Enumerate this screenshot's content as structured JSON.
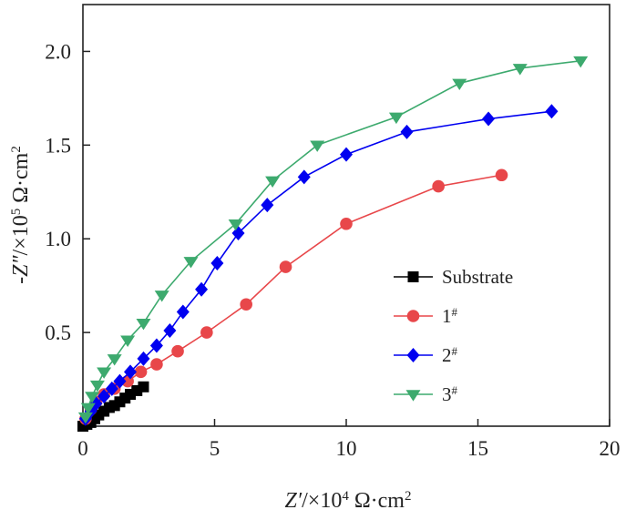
{
  "chart_data": {
    "type": "scatter",
    "xlabel": {
      "var": "Z′",
      "unit": "/×10",
      "exp": "4",
      "tail": " Ω·cm",
      "sq": "2"
    },
    "ylabel": {
      "var": "-Z″",
      "unit": "/×10",
      "exp": "5",
      "tail": " Ω·cm",
      "sq": "2"
    },
    "xlim": [
      0,
      20
    ],
    "ylim": [
      0,
      2.25
    ],
    "xticks": [
      "0",
      "5",
      "10",
      "15",
      "20"
    ],
    "yticks": [
      "0.5",
      "1.0",
      "1.5",
      "2.0"
    ],
    "grid": false,
    "legend_position": "right",
    "series": [
      {
        "name": "Substrate",
        "color": "#000000",
        "marker": "square",
        "x": [
          0.0,
          0.15,
          0.3,
          0.45,
          0.6,
          0.8,
          1.0,
          1.2,
          1.4,
          1.6,
          1.8,
          2.05,
          2.3
        ],
        "y": [
          0.0,
          0.01,
          0.02,
          0.04,
          0.06,
          0.08,
          0.1,
          0.11,
          0.13,
          0.15,
          0.17,
          0.19,
          0.21
        ]
      },
      {
        "name": "1",
        "sup": "#",
        "color": "#e8474a",
        "marker": "circle",
        "x": [
          0.1,
          0.3,
          0.5,
          0.8,
          1.2,
          1.7,
          2.2,
          2.8,
          3.6,
          4.7,
          6.2,
          7.7,
          10.0,
          13.5,
          15.9
        ],
        "y": [
          0.04,
          0.09,
          0.13,
          0.17,
          0.2,
          0.24,
          0.29,
          0.33,
          0.4,
          0.5,
          0.65,
          0.85,
          1.08,
          1.28,
          1.34
        ]
      },
      {
        "name": "2",
        "sup": "#",
        "color": "#0000f0",
        "marker": "diamond",
        "x": [
          0.1,
          0.3,
          0.5,
          0.8,
          1.1,
          1.4,
          1.8,
          2.3,
          2.8,
          3.3,
          3.8,
          4.5,
          5.1,
          5.9,
          7.0,
          8.4,
          10.0,
          12.3,
          15.4,
          17.8
        ],
        "y": [
          0.04,
          0.08,
          0.12,
          0.16,
          0.2,
          0.24,
          0.29,
          0.36,
          0.43,
          0.51,
          0.61,
          0.73,
          0.87,
          1.03,
          1.18,
          1.33,
          1.45,
          1.57,
          1.64,
          1.68
        ]
      },
      {
        "name": "3",
        "sup": "#",
        "color": "#3daa6e",
        "marker": "triangle-down",
        "x": [
          0.1,
          0.2,
          0.35,
          0.55,
          0.8,
          1.2,
          1.7,
          2.3,
          3.0,
          4.1,
          5.8,
          7.2,
          8.9,
          11.9,
          14.3,
          16.6,
          18.9
        ],
        "y": [
          0.05,
          0.1,
          0.16,
          0.22,
          0.29,
          0.36,
          0.46,
          0.55,
          0.7,
          0.88,
          1.08,
          1.31,
          1.5,
          1.65,
          1.83,
          1.91,
          1.95
        ]
      }
    ]
  }
}
